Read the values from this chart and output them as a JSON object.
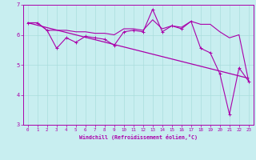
{
  "xlabel": "Windchill (Refroidissement éolien,°C)",
  "bg_color": "#c8eef0",
  "line_color": "#aa00aa",
  "grid_color": "#aadddd",
  "xlim": [
    -0.5,
    23.5
  ],
  "ylim": [
    3,
    7
  ],
  "yticks": [
    3,
    4,
    5,
    6,
    7
  ],
  "xticks": [
    0,
    1,
    2,
    3,
    4,
    5,
    6,
    7,
    8,
    9,
    10,
    11,
    12,
    13,
    14,
    15,
    16,
    17,
    18,
    19,
    20,
    21,
    22,
    23
  ],
  "line1_x": [
    0,
    1,
    2,
    3,
    4,
    5,
    6,
    7,
    8,
    9,
    10,
    11,
    12,
    13,
    14,
    15,
    16,
    17,
    18,
    19,
    20,
    21,
    22,
    23
  ],
  "line1_y": [
    6.4,
    6.4,
    6.15,
    5.55,
    5.9,
    5.75,
    5.95,
    5.9,
    5.85,
    5.65,
    6.1,
    6.15,
    6.1,
    6.85,
    6.1,
    6.3,
    6.2,
    6.45,
    5.55,
    5.4,
    4.7,
    3.35,
    4.9,
    4.45
  ],
  "line2_x": [
    0,
    1,
    2,
    3,
    4,
    5,
    6,
    7,
    8,
    9,
    10,
    11,
    12,
    13,
    14,
    15,
    16,
    17,
    18,
    19,
    20,
    21,
    22,
    23
  ],
  "line2_y": [
    6.4,
    6.4,
    6.15,
    6.15,
    6.15,
    6.1,
    6.1,
    6.05,
    6.05,
    6.0,
    6.2,
    6.2,
    6.15,
    6.5,
    6.2,
    6.3,
    6.25,
    6.45,
    6.35,
    6.35,
    6.1,
    5.9,
    6.0,
    4.45
  ],
  "trend_x": [
    0,
    23
  ],
  "trend_y": [
    6.4,
    4.55
  ]
}
